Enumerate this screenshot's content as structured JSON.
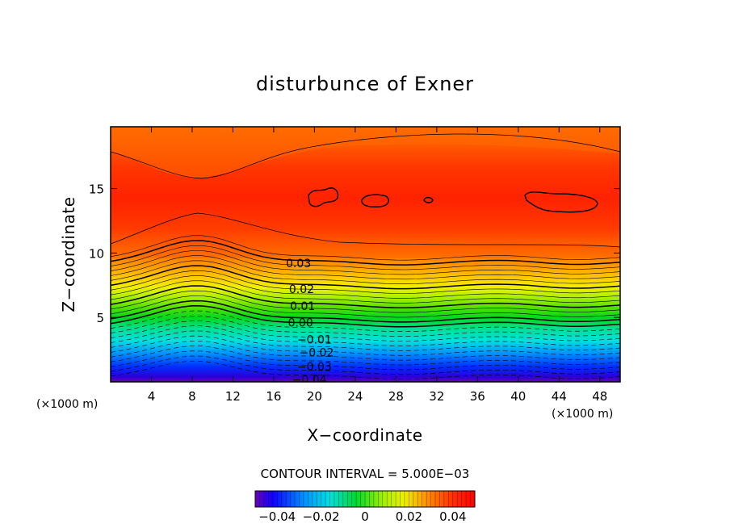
{
  "chart_data": {
    "type": "heatmap",
    "title": "disturbunce of Exner",
    "xlabel": "X−coordinate",
    "ylabel": "Z−coordinate",
    "x_unit": "(×1000 m)",
    "y_unit": "(×1000 m)",
    "xlim": [
      0,
      50
    ],
    "ylim": [
      0,
      19.8
    ],
    "x_ticks": [
      4,
      8,
      12,
      16,
      20,
      24,
      28,
      32,
      36,
      40,
      44,
      48
    ],
    "x_tick_labels": [
      "4",
      "8",
      "12",
      "16",
      "20",
      "24",
      "28",
      "32",
      "36",
      "40",
      "44",
      "48"
    ],
    "y_ticks": [
      5,
      10,
      15
    ],
    "y_tick_labels": [
      "5",
      "10",
      "15"
    ],
    "contour_interval_text": "CONTOUR INTERVAL = 5.000E−03",
    "contour_interval": 0.005,
    "contour_labels": [
      {
        "text": "0.03",
        "x": 17.2,
        "z": 9.2
      },
      {
        "text": "0.02",
        "x": 17.5,
        "z": 7.2
      },
      {
        "text": "0.01",
        "x": 17.6,
        "z": 5.9
      },
      {
        "text": "0.00",
        "x": 17.4,
        "z": 4.6
      },
      {
        "text": "−0.01",
        "x": 18.3,
        "z": 3.3
      },
      {
        "text": "−0.02",
        "x": 18.5,
        "z": 2.3
      },
      {
        "text": "−0.03",
        "x": 18.3,
        "z": 1.2
      },
      {
        "text": "−0.04",
        "x": 17.8,
        "z": 0.2
      }
    ],
    "colorbar": {
      "vmin": -0.05,
      "vmax": 0.05,
      "ticks": [
        -0.04,
        -0.02,
        0,
        0.02,
        0.04
      ],
      "tick_labels": [
        "−0.04",
        "−0.02",
        "0",
        "0.02",
        "0.04"
      ]
    },
    "colormap": "rainbow",
    "field_description_values": {
      "min_near_surface": -0.05,
      "max_upper_layer": 0.04
    }
  }
}
